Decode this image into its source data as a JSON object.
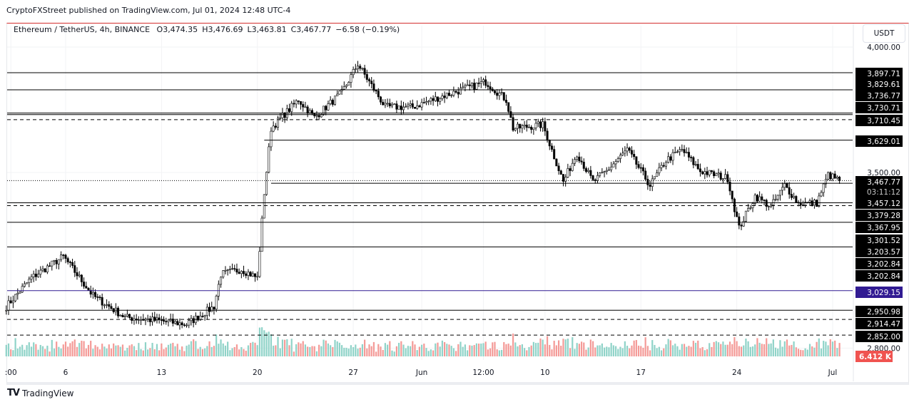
{
  "publish_line": "CryptoFXStreet published on TradingView.com, Jul 01, 2024 12:48 UTC-4",
  "legend": {
    "symbol": "Ethereum / TetherUS, 4h, BINANCE",
    "open": "O3,474.35",
    "high": "H3,476.69",
    "low": "L3,463.81",
    "close": "C3,467.77",
    "change": "−6.58 (−0.19%)"
  },
  "currency_button": "USDT",
  "brand": "TradingView",
  "brand_logo_text": "TV",
  "chart_data": {
    "type": "candlestick",
    "title": "Ethereum / TetherUS, 4h, BINANCE",
    "ylim": [
      2770,
      4030
    ],
    "xlim": [
      "2024-05-01T05:00",
      "2024-07-02T11:00"
    ],
    "y_ticks": [
      {
        "value": 4000,
        "label": "4,000.00"
      },
      {
        "value": 3500,
        "label": "3,500.00"
      },
      {
        "value": 2800,
        "label": "2,800.00"
      }
    ],
    "x_ticks": [
      {
        "date": "2024-05-02T00:00",
        "label": ":00"
      },
      {
        "date": "2024-05-06T00:00",
        "label": "6"
      },
      {
        "date": "2024-05-13T00:00",
        "label": "13"
      },
      {
        "date": "2024-05-20T00:00",
        "label": "20"
      },
      {
        "date": "2024-05-27T00:00",
        "label": "27"
      },
      {
        "date": "2024-06-01T00:00",
        "label": "Jun"
      },
      {
        "date": "2024-06-05T12:00",
        "label": "12:00"
      },
      {
        "date": "2024-06-10T00:00",
        "label": "10"
      },
      {
        "date": "2024-06-17T00:00",
        "label": "17"
      },
      {
        "date": "2024-06-24T00:00",
        "label": "24"
      },
      {
        "date": "2024-07-01T00:00",
        "label": "Jul"
      }
    ],
    "price_path": [
      [
        "2024-05-01T16:00",
        2966
      ],
      [
        "2024-05-03T12:00",
        3080
      ],
      [
        "2024-05-05T20:00",
        3165
      ],
      [
        "2024-05-08T00:00",
        3009
      ],
      [
        "2024-05-10T08:00",
        2923
      ],
      [
        "2024-05-12T16:00",
        2910
      ],
      [
        "2024-05-14T20:00",
        2895
      ],
      [
        "2024-05-16T20:00",
        2966
      ],
      [
        "2024-05-17T08:00",
        3094
      ],
      [
        "2024-05-18T20:00",
        3114
      ],
      [
        "2024-05-20T00:00",
        3080
      ],
      [
        "2024-05-20T12:00",
        3420
      ],
      [
        "2024-05-21T00:00",
        3676
      ],
      [
        "2024-05-23T00:00",
        3790
      ],
      [
        "2024-05-24T04:00",
        3719
      ],
      [
        "2024-05-26T04:00",
        3818
      ],
      [
        "2024-05-27T08:00",
        3932
      ],
      [
        "2024-05-29T08:00",
        3761
      ],
      [
        "2024-05-31T08:00",
        3761
      ],
      [
        "2024-06-02T12:00",
        3804
      ],
      [
        "2024-06-05T16:00",
        3861
      ],
      [
        "2024-06-07T04:00",
        3790
      ],
      [
        "2024-06-07T16:00",
        3676
      ],
      [
        "2024-06-09T20:00",
        3690
      ],
      [
        "2024-06-11T08:00",
        3463
      ],
      [
        "2024-06-12T08:00",
        3577
      ],
      [
        "2024-06-13T12:00",
        3463
      ],
      [
        "2024-06-14T12:00",
        3506
      ],
      [
        "2024-06-16T00:00",
        3591
      ],
      [
        "2024-06-17T16:00",
        3449
      ],
      [
        "2024-06-18T20:00",
        3548
      ],
      [
        "2024-06-20T00:00",
        3591
      ],
      [
        "2024-06-21T08:00",
        3506
      ],
      [
        "2024-06-23T08:00",
        3477
      ],
      [
        "2024-06-24T04:00",
        3278
      ],
      [
        "2024-06-25T08:00",
        3406
      ],
      [
        "2024-06-26T12:00",
        3364
      ],
      [
        "2024-06-27T12:00",
        3449
      ],
      [
        "2024-06-28T12:00",
        3378
      ],
      [
        "2024-06-29T20:00",
        3378
      ],
      [
        "2024-06-30T16:00",
        3491
      ],
      [
        "2024-07-01T12:00",
        3467.77
      ]
    ],
    "levels": [
      {
        "price": 3897.71,
        "label": "3,897.71",
        "style": "solid"
      },
      {
        "price": 3829.61,
        "label": "3,829.61",
        "style": "solid"
      },
      {
        "price": 3736.77,
        "label": "3,736.77",
        "style": "solid"
      },
      {
        "price": 3730.71,
        "label": "3,730.71",
        "style": "solid"
      },
      {
        "price": 3710.45,
        "label": "3,710.45",
        "style": "dashed"
      },
      {
        "price": 3629.01,
        "label": "3,629.01",
        "style": "solid",
        "from": "2024-05-20T12:00"
      },
      {
        "price": 3457.12,
        "label": "3,457.12",
        "style": "solid",
        "from": "2024-05-21T00:00"
      },
      {
        "price": 3379.28,
        "label": "3,379.28",
        "style": "solid"
      },
      {
        "price": 3367.95,
        "label": "3,367.95",
        "style": "dashed"
      },
      {
        "price": 3301.52,
        "label": "3,301.52",
        "style": "solid"
      },
      {
        "price": 3203.57,
        "label": "3,203.57",
        "style": "solid"
      },
      {
        "price": 3202.84,
        "label": "3,202.84",
        "style": "none"
      },
      {
        "price": 3202.84,
        "label": "3,202.84",
        "style": "none"
      },
      {
        "price": 3029.15,
        "label": "3,029.15",
        "style": "solid",
        "color": "#311b92"
      },
      {
        "price": 2950.98,
        "label": "2,950.98",
        "style": "solid"
      },
      {
        "price": 2914.47,
        "label": "2,914.47",
        "style": "dashed"
      },
      {
        "price": 2852.0,
        "label": "2,852.00",
        "style": "dashed"
      }
    ],
    "last_price": {
      "price": 3467.77,
      "label": "3,467.77",
      "countdown": "03:11:12"
    },
    "volume_label": "6.412 K",
    "colors": {
      "up": "#ffffff",
      "down": "#000000",
      "outline": "#000000",
      "vol_up": "#8fd3c8",
      "vol_down": "#f49a97",
      "volume_badge": "#f05350",
      "level_badge": "#000000"
    }
  }
}
